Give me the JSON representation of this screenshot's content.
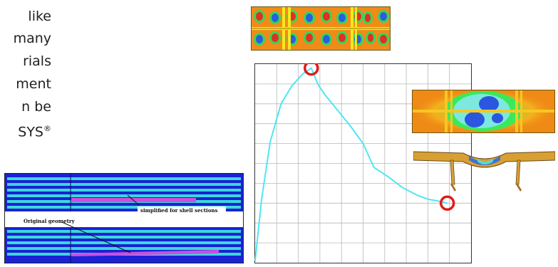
{
  "paragraph": {
    "lines": [
      "like",
      "many",
      "rials",
      "ment",
      "n be",
      "SYS"
    ],
    "trademark": "®"
  },
  "geometry_figure": {
    "label_simplified": "simplified for shell sections",
    "label_original": "Original geometry",
    "colors": {
      "background": "#1a22d4",
      "stripe": "#3cd7dc",
      "highlight": "#c850e0"
    }
  },
  "chart_data": {
    "type": "line",
    "title": "",
    "xlabel": "",
    "ylabel": "",
    "xlim": [
      0,
      10
    ],
    "ylim": [
      0,
      10
    ],
    "grid": true,
    "series": [
      {
        "color": "#4ee7f2",
        "x": [
          0.0,
          0.3,
          0.7,
          1.2,
          1.7,
          2.2,
          2.6,
          2.9,
          3.2,
          3.8,
          4.4,
          5.0,
          5.5,
          6.2,
          6.8,
          7.5,
          8.0,
          8.5,
          8.9
        ],
        "y": [
          0.1,
          3.2,
          6.1,
          8.0,
          8.9,
          9.5,
          9.8,
          9.0,
          8.5,
          7.7,
          6.9,
          6.0,
          4.8,
          4.3,
          3.8,
          3.4,
          3.2,
          3.1,
          3.0
        ]
      }
    ],
    "highlights": [
      {
        "x": 2.6,
        "y": 9.8,
        "color": "#e01b1b"
      },
      {
        "x": 8.9,
        "y": 3.0,
        "color": "#e01b1b"
      }
    ]
  },
  "figures": {
    "contour_top": {
      "colors": [
        "#f28a18",
        "#e03020",
        "#2a5de0",
        "#3ad45a",
        "#f7e81c",
        "#25c7cf"
      ]
    },
    "contour_inset": {
      "colors": [
        "#ef8a16",
        "#f6c822",
        "#2b57e0",
        "#3ce85a",
        "#7de8e0"
      ]
    },
    "deformed_inset": {
      "colors": [
        "#d8a033",
        "#a66e2a",
        "#3a73d6",
        "#5bd8d4"
      ]
    }
  }
}
